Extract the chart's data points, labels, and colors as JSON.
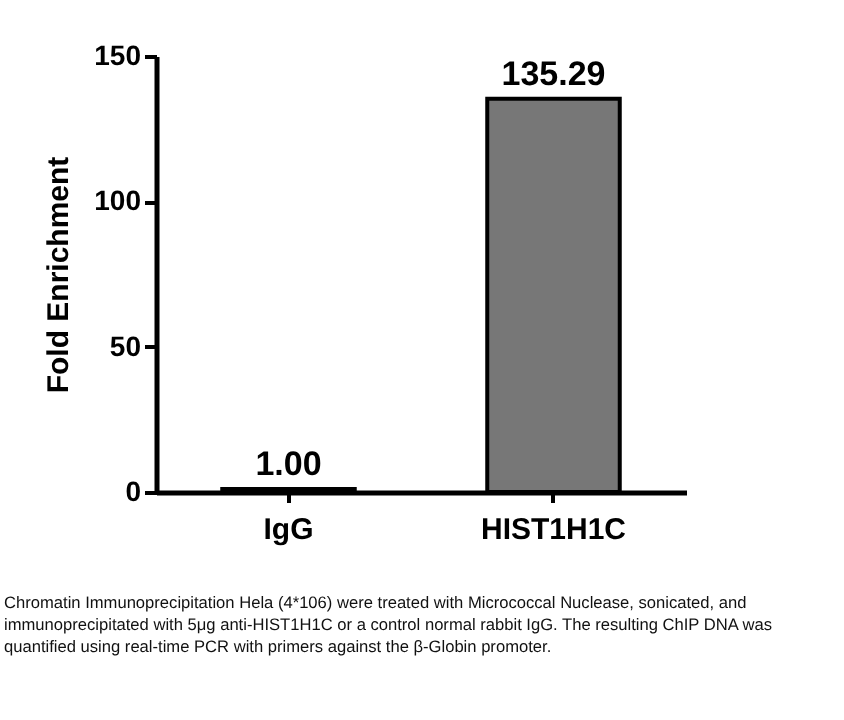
{
  "chart_data": {
    "type": "bar",
    "ylabel": "Fold Enrichment",
    "categories": [
      "IgG",
      "HIST1H1C"
    ],
    "values": [
      1.0,
      135.29
    ],
    "value_labels": [
      "1.00",
      "135.29"
    ],
    "colors": [
      "#444444",
      "#777777"
    ],
    "ylim": [
      0,
      150
    ],
    "yticks": [
      0,
      50,
      100,
      150
    ],
    "grid": false,
    "annotations": [
      "Chromatin Immunoprecipitation Hela (4*106) were treated with Micrococcal Nuclease, sonicated, and immunoprecipitated with 5μg anti-HIST1H1C or a control normal rabbit IgG. The resulting ChIP DNA was quantified using real-time PCR with primers against the β-Globin promoter."
    ]
  }
}
